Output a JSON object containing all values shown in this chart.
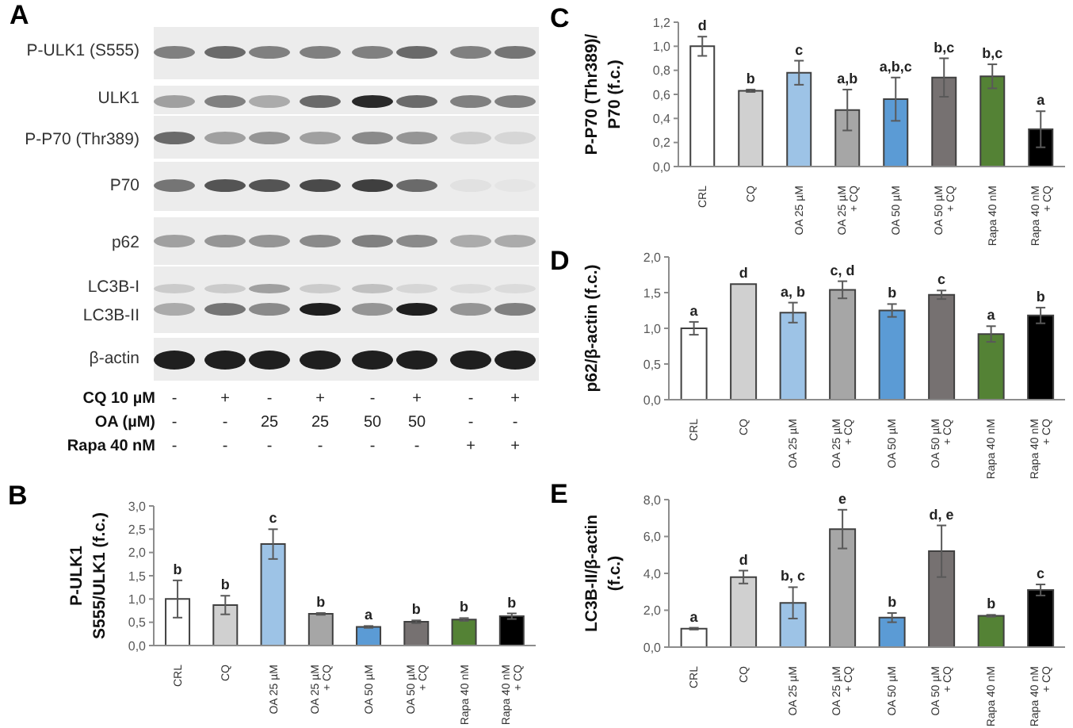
{
  "chart_data": [
    {
      "type": "other",
      "title": "A",
      "annotations": [
        "P-ULK1 (S555)",
        "ULK1",
        "P-P70 (Thr389)",
        "P70",
        "p62",
        "LC3B-I",
        "LC3B-II",
        "β-actin",
        "CQ 10 µM",
        "-",
        "+",
        "-",
        "+",
        "-",
        "+",
        "-",
        "+",
        "OA (µM)",
        "-",
        "-",
        "25",
        "25",
        "50",
        "50",
        "-",
        "-",
        "Rapa 40 nM",
        "-",
        "-",
        "-",
        "-",
        "-",
        "-",
        "+",
        "+"
      ]
    },
    {
      "type": "bar",
      "title": "B",
      "ylabel": "P-ULK1\nS555/ULK1 (f.c.)",
      "categories": [
        "CRL",
        "CQ",
        "OA 25 µM",
        "OA 25 µM\n+ CQ",
        "OA 50 µM",
        "OA 50 µM\n+ CQ",
        "Rapa 40 nM",
        "Rapa 40 nM\n+ CQ"
      ],
      "values": [
        1.0,
        0.87,
        2.18,
        0.68,
        0.4,
        0.51,
        0.56,
        0.63
      ],
      "errors": [
        0.4,
        0.2,
        0.32,
        0.02,
        0.02,
        0.03,
        0.03,
        0.06
      ],
      "colors": [
        "#ffffff",
        "#d0d0d0",
        "#9dc3e6",
        "#a6a6a6",
        "#5b9bd5",
        "#767171",
        "#548235",
        "#000000"
      ],
      "value_labels": [
        "b",
        "b",
        "c",
        "b",
        "a",
        "b",
        "b",
        "b"
      ],
      "ylim": [
        0,
        3
      ],
      "yticks": [
        {
          "value": 0,
          "label": "0,0"
        },
        {
          "value": 0.5,
          "label": "0,5"
        },
        {
          "value": 1,
          "label": "1,0"
        },
        {
          "value": 1.5,
          "label": "1,5"
        },
        {
          "value": 2,
          "label": "2,0"
        },
        {
          "value": 2.5,
          "label": "2,5"
        },
        {
          "value": 3,
          "label": "3,0"
        }
      ]
    },
    {
      "type": "bar",
      "title": "C",
      "ylabel": "P-P70 (Thr389)/\nP70 (f.c.)",
      "categories": [
        "CRL",
        "CQ",
        "OA 25 µM",
        "OA 25 µM\n+ CQ",
        "OA 50 µM",
        "OA 50 µM\n+ CQ",
        "Rapa 40 nM",
        "Rapa 40 nM\n+ CQ"
      ],
      "values": [
        1.0,
        0.63,
        0.78,
        0.47,
        0.56,
        0.74,
        0.75,
        0.31
      ],
      "errors": [
        0.08,
        0.01,
        0.1,
        0.17,
        0.18,
        0.16,
        0.1,
        0.15
      ],
      "colors": [
        "#ffffff",
        "#d0d0d0",
        "#9dc3e6",
        "#a6a6a6",
        "#5b9bd5",
        "#767171",
        "#548235",
        "#000000"
      ],
      "value_labels": [
        "d",
        "b",
        "c",
        "a,b",
        "a,b,c",
        "b,c",
        "b,c",
        "a"
      ],
      "ylim": [
        0,
        1.2
      ],
      "yticks": [
        {
          "value": 0,
          "label": "0,0"
        },
        {
          "value": 0.2,
          "label": "0,2"
        },
        {
          "value": 0.4,
          "label": "0,4"
        },
        {
          "value": 0.6,
          "label": "0,6"
        },
        {
          "value": 0.8,
          "label": "0,8"
        },
        {
          "value": 1,
          "label": "1,0"
        },
        {
          "value": 1.2,
          "label": "1,2"
        }
      ]
    },
    {
      "type": "bar",
      "title": "D",
      "ylabel": "p62/β-actin (f.c.)",
      "categories": [
        "CRL",
        "CQ",
        "OA 25 µM",
        "OA 25 µM\n+ CQ",
        "OA 50 µM",
        "OA 50 µM\n+ CQ",
        "Rapa 40 nM",
        "Rapa 40 nM\n+ CQ"
      ],
      "values": [
        1.0,
        1.62,
        1.22,
        1.54,
        1.25,
        1.47,
        0.92,
        1.18
      ],
      "errors": [
        0.09,
        null,
        0.14,
        0.12,
        0.09,
        0.06,
        0.11,
        0.11
      ],
      "colors": [
        "#ffffff",
        "#d0d0d0",
        "#9dc3e6",
        "#a6a6a6",
        "#5b9bd5",
        "#767171",
        "#548235",
        "#000000"
      ],
      "value_labels": [
        "a",
        "d",
        "a, b",
        "c, d",
        "b",
        "c",
        "a",
        "b"
      ],
      "ylim": [
        0,
        2
      ],
      "yticks": [
        {
          "value": 0,
          "label": "0,0"
        },
        {
          "value": 0.5,
          "label": "0,5"
        },
        {
          "value": 1,
          "label": "1,0"
        },
        {
          "value": 1.5,
          "label": "1,5"
        },
        {
          "value": 2,
          "label": "2,0"
        }
      ]
    },
    {
      "type": "bar",
      "title": "E",
      "ylabel": "LC3B-II/β-actin\n(f.c.)",
      "categories": [
        "CRL",
        "CQ",
        "OA 25 µM",
        "OA 25 µM\n+ CQ",
        "OA 50 µM",
        "OA 50 µM\n+ CQ",
        "Rapa 40 nM",
        "Rapa 40 nM\n+ CQ"
      ],
      "values": [
        1.0,
        3.8,
        2.4,
        6.4,
        1.6,
        5.2,
        1.7,
        3.1
      ],
      "errors": [
        0.05,
        0.35,
        0.85,
        1.05,
        0.25,
        1.4,
        0.05,
        0.3
      ],
      "colors": [
        "#ffffff",
        "#d0d0d0",
        "#9dc3e6",
        "#a6a6a6",
        "#5b9bd5",
        "#767171",
        "#548235",
        "#000000"
      ],
      "value_labels": [
        "a",
        "d",
        "b, c",
        "e",
        "b",
        "d, e",
        "b",
        "c"
      ],
      "ylim": [
        0,
        8
      ],
      "yticks": [
        {
          "value": 0,
          "label": "0,0"
        },
        {
          "value": 2,
          "label": "2,0"
        },
        {
          "value": 4,
          "label": "4,0"
        },
        {
          "value": 6,
          "label": "6,0"
        },
        {
          "value": 8,
          "label": "8,0"
        }
      ]
    }
  ]
}
